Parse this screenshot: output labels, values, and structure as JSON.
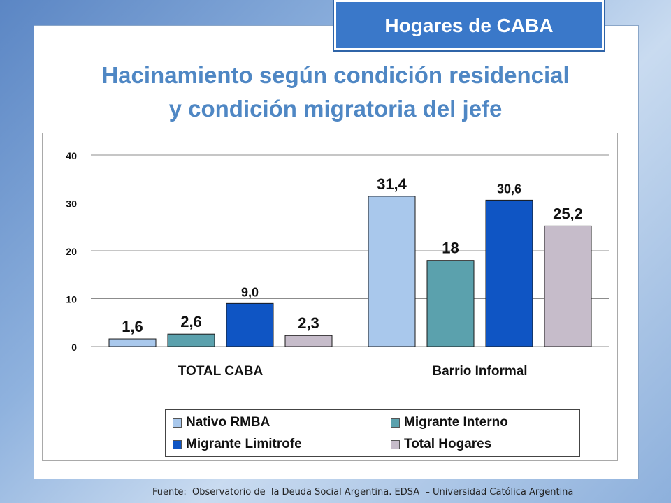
{
  "badge": {
    "text": "Hogares de CABA"
  },
  "title": {
    "line1": "Hacinamiento según condición residencial",
    "line2": "y condición migratoria del jefe"
  },
  "source": "Fuente:  Observatorio de  la Deuda Social Argentina. EDSA  – Universidad Católica Argentina",
  "chart_data": {
    "type": "bar",
    "categories": [
      "TOTAL CABA",
      "Barrio Informal"
    ],
    "series": [
      {
        "name": "Nativo RMBA",
        "values": [
          1.6,
          31.4
        ],
        "labels": [
          "1,6",
          "31,4"
        ],
        "color": "#a9c8ec"
      },
      {
        "name": "Migrante Interno",
        "values": [
          2.6,
          18
        ],
        "labels": [
          "2,6",
          "18"
        ],
        "color": "#5ba1ad"
      },
      {
        "name": "Migrante Limitrofe",
        "values": [
          9.0,
          30.6
        ],
        "labels": [
          "9,0",
          "30,6"
        ],
        "color": "#0f55c4"
      },
      {
        "name": "Total Hogares",
        "values": [
          2.3,
          25.2
        ],
        "labels": [
          "2,3",
          "25,2"
        ],
        "color": "#c6bcca"
      }
    ],
    "y_ticks": [
      "0",
      "10",
      "20",
      "30",
      "40"
    ],
    "ylim": [
      0,
      40
    ],
    "grid": true,
    "legend_position": "bottom",
    "xlabel": "",
    "ylabel": ""
  }
}
